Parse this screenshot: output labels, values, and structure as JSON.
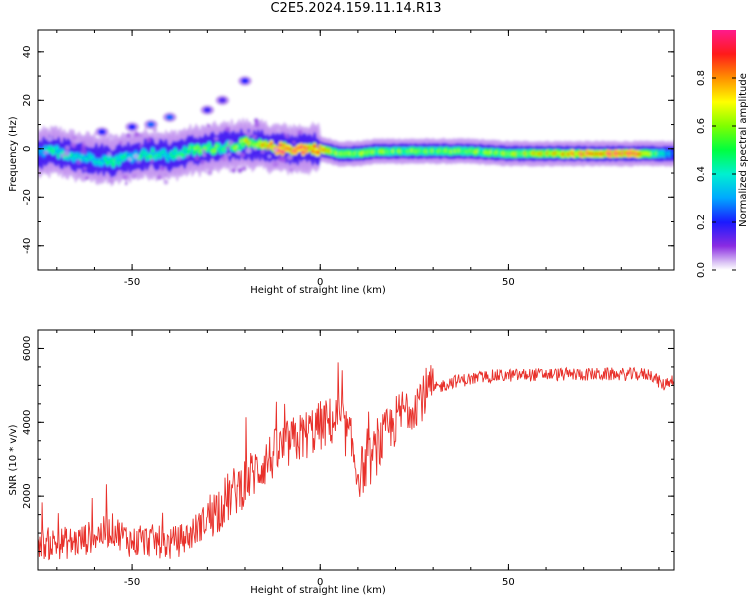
{
  "title": "C2E5.2024.159.11.14.R13",
  "chart_data": [
    {
      "type": "heatmap",
      "xlabel": "Height of straight line (km)",
      "ylabel": "Frequency (Hz)",
      "xlim": [
        -75,
        94
      ],
      "ylim": [
        -50,
        49
      ],
      "xticks": [
        -50,
        0,
        50
      ],
      "yticks": [
        40,
        20,
        0,
        -20,
        -40
      ],
      "colorbar": {
        "label": "Normalized spectral amplitude",
        "range": [
          0,
          1
        ],
        "ticks": [
          0.0,
          0.2,
          0.4,
          0.6,
          0.8
        ]
      },
      "ridge": [
        {
          "x": -75,
          "y": -2,
          "amp": 0.35
        },
        {
          "x": -70,
          "y": -1,
          "amp": 0.5
        },
        {
          "x": -65,
          "y": -3,
          "amp": 0.45
        },
        {
          "x": -60,
          "y": -4,
          "amp": 0.4
        },
        {
          "x": -55,
          "y": -5,
          "amp": 0.5
        },
        {
          "x": -50,
          "y": -3,
          "amp": 0.45
        },
        {
          "x": -45,
          "y": -2,
          "amp": 0.5
        },
        {
          "x": -40,
          "y": -3,
          "amp": 0.45
        },
        {
          "x": -35,
          "y": -1,
          "amp": 0.55
        },
        {
          "x": -30,
          "y": 0,
          "amp": 0.6
        },
        {
          "x": -25,
          "y": 1,
          "amp": 0.55
        },
        {
          "x": -20,
          "y": 2,
          "amp": 0.65
        },
        {
          "x": -15,
          "y": 1,
          "amp": 0.8
        },
        {
          "x": -10,
          "y": 0,
          "amp": 0.95
        },
        {
          "x": -5,
          "y": 0,
          "amp": 0.95
        },
        {
          "x": 0,
          "y": 0,
          "amp": 0.9
        },
        {
          "x": 5,
          "y": -2,
          "amp": 0.6
        },
        {
          "x": 10,
          "y": -2,
          "amp": 0.65
        },
        {
          "x": 15,
          "y": -1,
          "amp": 0.6
        },
        {
          "x": 20,
          "y": -1,
          "amp": 0.6
        },
        {
          "x": 30,
          "y": -1,
          "amp": 0.6
        },
        {
          "x": 40,
          "y": -1,
          "amp": 0.62
        },
        {
          "x": 50,
          "y": -2,
          "amp": 0.65
        },
        {
          "x": 60,
          "y": -2,
          "amp": 0.75
        },
        {
          "x": 70,
          "y": -2,
          "amp": 0.9
        },
        {
          "x": 80,
          "y": -2,
          "amp": 0.95
        },
        {
          "x": 85,
          "y": -2,
          "amp": 0.9
        },
        {
          "x": 90,
          "y": -2,
          "amp": 0.5
        },
        {
          "x": 94,
          "y": -2,
          "amp": 0.3
        }
      ],
      "branch": [
        {
          "x": -58,
          "y": 7,
          "amp": 0.15
        },
        {
          "x": -50,
          "y": 9,
          "amp": 0.15
        },
        {
          "x": -45,
          "y": 10,
          "amp": 0.2
        },
        {
          "x": -40,
          "y": 13,
          "amp": 0.2
        },
        {
          "x": -30,
          "y": 16,
          "amp": 0.12
        },
        {
          "x": -26,
          "y": 20,
          "amp": 0.1
        },
        {
          "x": -20,
          "y": 28,
          "amp": 0.15
        }
      ]
    },
    {
      "type": "line",
      "xlabel": "Height of straight line (km)",
      "ylabel": "SNR (10 * v/v)",
      "xlim": [
        -75,
        94
      ],
      "ylim": [
        0,
        6500
      ],
      "xticks": [
        -50,
        0,
        50
      ],
      "yticks": [
        2000,
        4000,
        6000
      ],
      "color": "#e8302a",
      "trend": [
        {
          "x": -75,
          "y": 700
        },
        {
          "x": -65,
          "y": 750
        },
        {
          "x": -55,
          "y": 1100
        },
        {
          "x": -50,
          "y": 750
        },
        {
          "x": -45,
          "y": 800
        },
        {
          "x": -40,
          "y": 700
        },
        {
          "x": -35,
          "y": 900
        },
        {
          "x": -30,
          "y": 1400
        },
        {
          "x": -25,
          "y": 1900
        },
        {
          "x": -20,
          "y": 2400
        },
        {
          "x": -15,
          "y": 2900
        },
        {
          "x": -10,
          "y": 3300
        },
        {
          "x": -5,
          "y": 3600
        },
        {
          "x": 0,
          "y": 3900
        },
        {
          "x": 5,
          "y": 4100
        },
        {
          "x": 8,
          "y": 3500
        },
        {
          "x": 10,
          "y": 2600
        },
        {
          "x": 13,
          "y": 2900
        },
        {
          "x": 17,
          "y": 3600
        },
        {
          "x": 22,
          "y": 4300
        },
        {
          "x": 28,
          "y": 4800
        },
        {
          "x": 35,
          "y": 5100
        },
        {
          "x": 45,
          "y": 5250
        },
        {
          "x": 60,
          "y": 5300
        },
        {
          "x": 75,
          "y": 5300
        },
        {
          "x": 88,
          "y": 5300
        },
        {
          "x": 91,
          "y": 5000
        },
        {
          "x": 94,
          "y": 5200
        }
      ]
    }
  ]
}
